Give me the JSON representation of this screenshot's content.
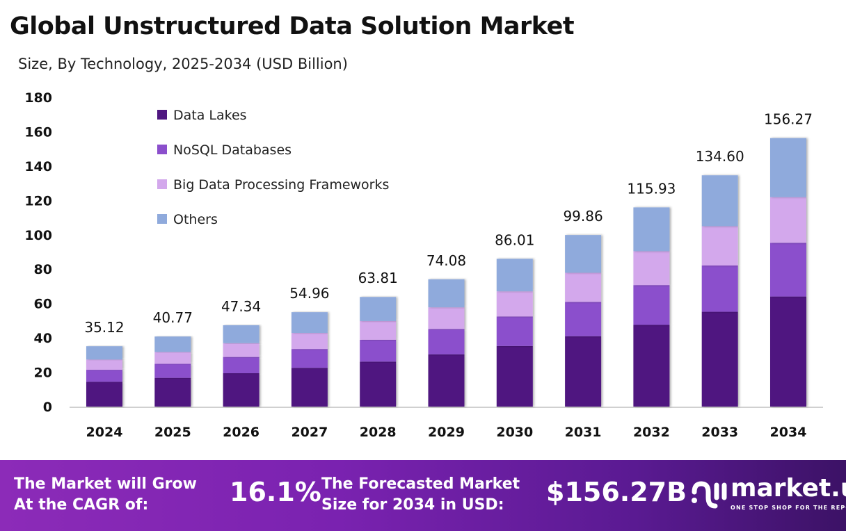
{
  "chart_data": {
    "type": "bar",
    "stacked": true,
    "title": "Global Unstructured Data Solution Market",
    "subtitle": "Size, By Technology, 2025-2034 (USD Billion)",
    "xlabel": "",
    "ylabel": "",
    "ylim": [
      0,
      180
    ],
    "yticks": [
      0,
      20,
      40,
      60,
      80,
      100,
      120,
      140,
      160,
      180
    ],
    "grid": false,
    "legend_position": "top-left",
    "categories": [
      "2024",
      "2025",
      "2026",
      "2027",
      "2028",
      "2029",
      "2030",
      "2031",
      "2032",
      "2033",
      "2034"
    ],
    "totals": [
      "35.12",
      "40.77",
      "47.34",
      "54.96",
      "63.81",
      "74.08",
      "86.01",
      "99.86",
      "115.93",
      "134.60",
      "156.27"
    ],
    "series": [
      {
        "name": "Data Lakes",
        "color": "#4f1780",
        "values": [
          14.4,
          16.72,
          19.41,
          22.53,
          26.16,
          30.37,
          35.26,
          40.94,
          47.53,
          55.19,
          64.07
        ]
      },
      {
        "name": "NoSQL Databases",
        "color": "#8b4fcc",
        "values": [
          7.02,
          8.15,
          9.47,
          10.99,
          12.76,
          14.82,
          17.2,
          19.97,
          23.19,
          26.92,
          31.25
        ]
      },
      {
        "name": "Big Data Processing Frameworks",
        "color": "#d3a8ec",
        "values": [
          5.97,
          6.93,
          8.05,
          9.34,
          10.85,
          12.59,
          14.62,
          16.98,
          19.71,
          22.88,
          26.57
        ]
      },
      {
        "name": "Others",
        "color": "#8faadc",
        "values": [
          7.73,
          8.97,
          10.41,
          12.1,
          14.04,
          16.3,
          18.93,
          21.97,
          25.5,
          29.61,
          34.38
        ]
      }
    ]
  },
  "footer": {
    "cagr_label_line1": "The Market will Grow",
    "cagr_label_line2": "At the CAGR of:",
    "cagr_value": "16.1%",
    "forecast_label_line1": "The Forecasted Market",
    "forecast_label_line2": "Size for 2034 in USD:",
    "forecast_value": "$156.27B",
    "logo_name": "market.us",
    "logo_tagline": "ONE STOP SHOP FOR THE REPORTS"
  }
}
